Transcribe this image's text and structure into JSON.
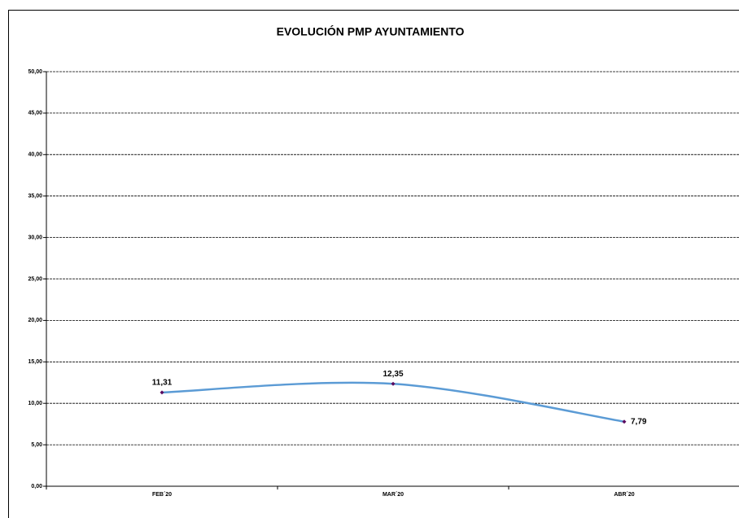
{
  "chart_data": {
    "type": "line",
    "title": "EVOLUCIÓN PMP AYUNTAMIENTO",
    "categories": [
      "FEB´20",
      "MAR´20",
      "ABR´20"
    ],
    "values": [
      11.31,
      12.35,
      7.79
    ],
    "value_labels": [
      "11,31",
      "12,35",
      "7,79"
    ],
    "color": "#5b9bd5",
    "marker_color": "#5a0a5e",
    "smooth": true,
    "grid": true,
    "ylim": [
      0,
      50
    ],
    "yticks": [
      {
        "value": 0,
        "label": "0,00"
      },
      {
        "value": 5,
        "label": "5,00"
      },
      {
        "value": 10,
        "label": "10,00"
      },
      {
        "value": 15,
        "label": "15,00"
      },
      {
        "value": 20,
        "label": "20,00"
      },
      {
        "value": 25,
        "label": "25,00"
      },
      {
        "value": 30,
        "label": "30,00"
      },
      {
        "value": 35,
        "label": "35,00"
      },
      {
        "value": 40,
        "label": "40,00"
      },
      {
        "value": 45,
        "label": "45,00"
      },
      {
        "value": 50,
        "label": "50,00"
      }
    ]
  }
}
